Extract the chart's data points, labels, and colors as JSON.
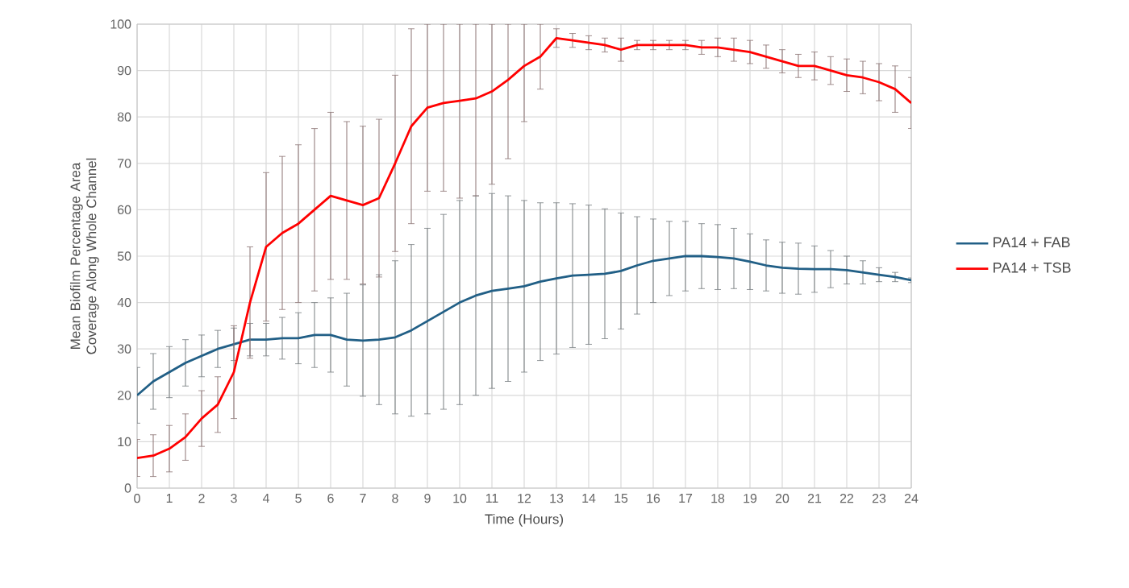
{
  "chart_data": {
    "type": "line",
    "xlabel": "Time (Hours)",
    "ylabel": "Mean Biofilm Percentage Area Coverage Along Whole Channel",
    "x": [
      0,
      0.5,
      1,
      1.5,
      2,
      2.5,
      3,
      3.5,
      4,
      4.5,
      5,
      5.5,
      6,
      6.5,
      7,
      7.5,
      8,
      8.5,
      9,
      9.5,
      10,
      10.5,
      11,
      11.5,
      12,
      12.5,
      13,
      13.5,
      14,
      14.5,
      15,
      15.5,
      16,
      16.5,
      17,
      17.5,
      18,
      18.5,
      19,
      19.5,
      20,
      20.5,
      21,
      21.5,
      22,
      22.5,
      23,
      23.5,
      24
    ],
    "series": [
      {
        "name": "PA14 + FAB",
        "color": "#215f86",
        "values": [
          20,
          23,
          25,
          27,
          28.5,
          30,
          31,
          32,
          32,
          32.3,
          32.3,
          33,
          33,
          32,
          31.8,
          32,
          32.5,
          34,
          36,
          38,
          40,
          41.5,
          42.5,
          43,
          43.5,
          44.5,
          45.2,
          45.8,
          46,
          46.2,
          46.8,
          48,
          49,
          49.5,
          50,
          50,
          49.8,
          49.5,
          48.8,
          48,
          47.5,
          47.3,
          47.2,
          47.2,
          47,
          46.5,
          46,
          45.5,
          44.8
        ],
        "errors": [
          6,
          6,
          5.5,
          5,
          4.5,
          4,
          3.5,
          3.5,
          3.5,
          4.5,
          5.5,
          7,
          8,
          10,
          12,
          14,
          16.5,
          18.5,
          20,
          21,
          22,
          21.5,
          21,
          20,
          18.5,
          17,
          16.3,
          15.5,
          15,
          14,
          12.5,
          10.5,
          9,
          8,
          7.5,
          7,
          7,
          6.5,
          6,
          5.5,
          5.5,
          5.5,
          5,
          4,
          3,
          2.5,
          1.5,
          1,
          0.5
        ]
      },
      {
        "name": "PA14 + TSB",
        "color": "#ff0000",
        "values": [
          6.5,
          7,
          8.5,
          11,
          15,
          18,
          25,
          40,
          52,
          55,
          57,
          60,
          63,
          62,
          61,
          62.5,
          70,
          78,
          82,
          83,
          83.5,
          84,
          85.5,
          88,
          91,
          93,
          97,
          96.5,
          96,
          95.5,
          94.5,
          95.5,
          95.5,
          95.5,
          95.5,
          95,
          95,
          94.5,
          94,
          93,
          92,
          91,
          91,
          90,
          89,
          88.5,
          87.5,
          86,
          83
        ],
        "errors": [
          4,
          4.5,
          5,
          5,
          6,
          6,
          10,
          12,
          16,
          16.5,
          17,
          17.5,
          18,
          17,
          17,
          17,
          19,
          21,
          18,
          [
            64,
            100
          ],
          [
            62.5,
            100
          ],
          [
            63,
            100
          ],
          [
            65.5,
            100
          ],
          [
            71,
            100
          ],
          [
            79,
            100
          ],
          [
            86,
            100
          ],
          2,
          1.5,
          1.5,
          1.5,
          2.5,
          1,
          1,
          1,
          1,
          1.5,
          2,
          2.5,
          2.5,
          2.5,
          2.5,
          2.5,
          3,
          3,
          3.5,
          3.5,
          4,
          5,
          5.5
        ]
      }
    ],
    "xlim": [
      0,
      24
    ],
    "xticks": [
      0,
      1,
      2,
      3,
      4,
      5,
      6,
      7,
      8,
      9,
      10,
      11,
      12,
      13,
      14,
      15,
      16,
      17,
      18,
      19,
      20,
      21,
      22,
      23,
      24
    ],
    "ylim": [
      0,
      100
    ],
    "yticks": [
      0,
      10,
      20,
      30,
      40,
      50,
      60,
      70,
      80,
      90,
      100
    ],
    "grid": true,
    "legend": "right",
    "marker": "none",
    "line_style": "solid"
  }
}
